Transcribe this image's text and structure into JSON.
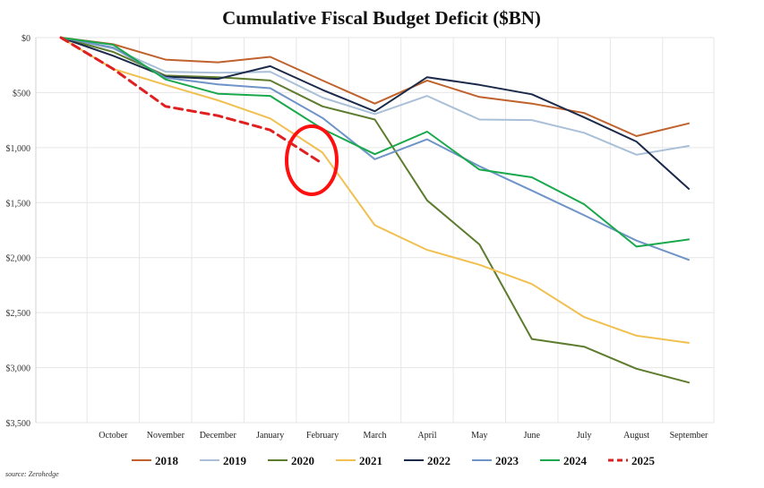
{
  "source": "source: Zerohedge",
  "chart_data": {
    "type": "line",
    "title": "Cumulative Fiscal Budget Deficit ($BN)",
    "xlabel": "",
    "ylabel": "",
    "categories": [
      "",
      "October",
      "November",
      "December",
      "January",
      "February",
      "March",
      "April",
      "May",
      "June",
      "July",
      "August",
      "September"
    ],
    "y_ticks": [
      "$0",
      "$500",
      "$1,000",
      "$1,500",
      "$2,000",
      "$2,500",
      "$3,000",
      "$3,500"
    ],
    "y_tick_values": [
      0,
      500,
      1000,
      1500,
      2000,
      2500,
      3000,
      3500
    ],
    "ylim": [
      0,
      3500
    ],
    "y_inverted": true,
    "grid": true,
    "legend_position": "bottom",
    "annotation": "red-circle-around-february-2025",
    "series": [
      {
        "name": "2018",
        "color": "#c0622d",
        "dash": false,
        "values": [
          0,
          60,
          200,
          225,
          175,
          390,
          600,
          390,
          540,
          600,
          685,
          895,
          780
        ]
      },
      {
        "name": "2019",
        "color": "#a9c0d8",
        "dash": false,
        "values": [
          0,
          100,
          310,
          320,
          310,
          545,
          695,
          530,
          745,
          750,
          865,
          1065,
          985
        ]
      },
      {
        "name": "2020",
        "color": "#5e7c2e",
        "dash": false,
        "values": [
          0,
          130,
          345,
          360,
          390,
          625,
          745,
          1480,
          1880,
          2740,
          2810,
          3010,
          3135
        ]
      },
      {
        "name": "2021",
        "color": "#f0c050",
        "dash": false,
        "values": [
          0,
          285,
          430,
          570,
          735,
          1045,
          1705,
          1930,
          2065,
          2240,
          2540,
          2710,
          2775
        ]
      },
      {
        "name": "2022",
        "color": "#1c2a4a",
        "dash": false,
        "values": [
          0,
          165,
          355,
          375,
          260,
          475,
          670,
          360,
          430,
          515,
          725,
          945,
          1375
        ]
      },
      {
        "name": "2023",
        "color": "#6f94c8",
        "dash": false,
        "values": [
          0,
          90,
          365,
          425,
          460,
          730,
          1105,
          925,
          1170,
          1390,
          1615,
          1845,
          2020
        ]
      },
      {
        "name": "2024",
        "color": "#1aa84c",
        "dash": false,
        "values": [
          0,
          65,
          380,
          510,
          530,
          830,
          1060,
          855,
          1200,
          1270,
          1515,
          1900,
          1835
        ]
      },
      {
        "name": "2025",
        "color": "#e02020",
        "dash": true,
        "values": [
          0,
          285,
          625,
          710,
          840,
          1145,
          null,
          null,
          null,
          null,
          null,
          null,
          null
        ]
      }
    ]
  }
}
